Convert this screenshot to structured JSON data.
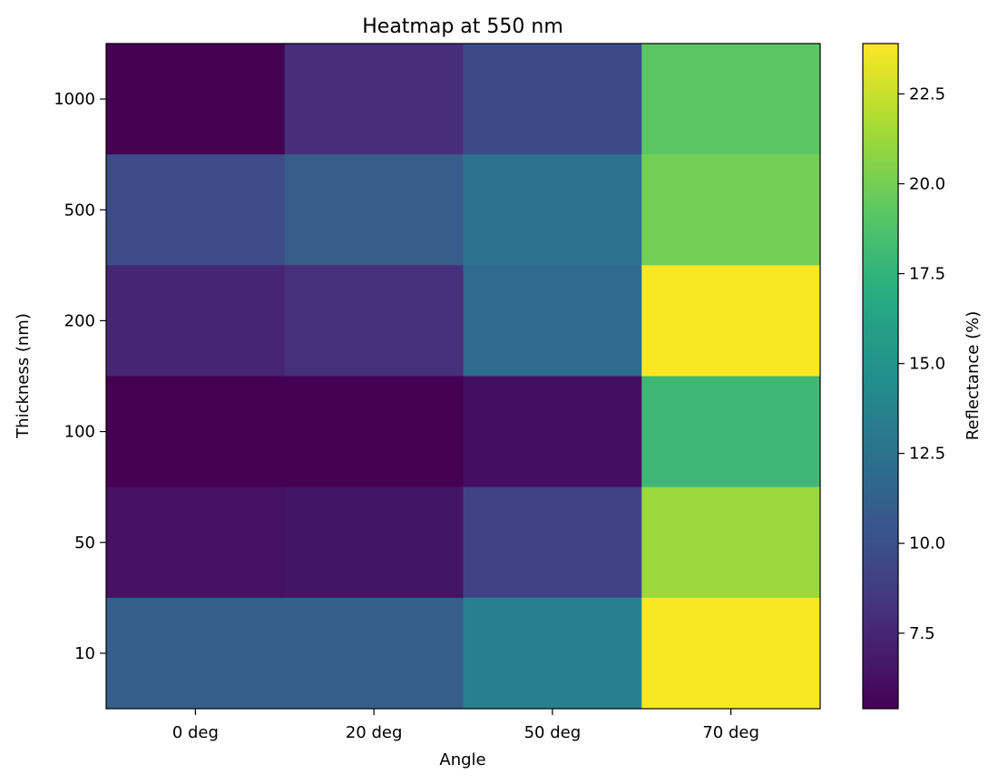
{
  "chart_data": {
    "type": "heatmap",
    "title": "Heatmap at 550 nm",
    "xlabel": "Angle",
    "ylabel": "Thickness (nm)",
    "x_categories": [
      "0 deg",
      "20 deg",
      "50 deg",
      "70 deg"
    ],
    "y_categories": [
      "1000",
      "500",
      "200",
      "100",
      "50",
      "10"
    ],
    "values": [
      [
        5.4,
        7.9,
        9.6,
        19.2
      ],
      [
        9.7,
        10.9,
        12.5,
        20.0
      ],
      [
        7.4,
        8.0,
        12.0,
        23.8
      ],
      [
        5.4,
        5.4,
        6.2,
        18.0
      ],
      [
        6.3,
        6.5,
        9.2,
        21.2
      ],
      [
        11.0,
        11.0,
        13.5,
        23.8
      ]
    ],
    "colorbar": {
      "label": "Reflectance (%)",
      "ticks": [
        "7.5",
        "10.0",
        "12.5",
        "15.0",
        "17.5",
        "20.0",
        "22.5"
      ],
      "range": [
        5.4,
        23.9
      ],
      "colormap": "viridis"
    }
  }
}
